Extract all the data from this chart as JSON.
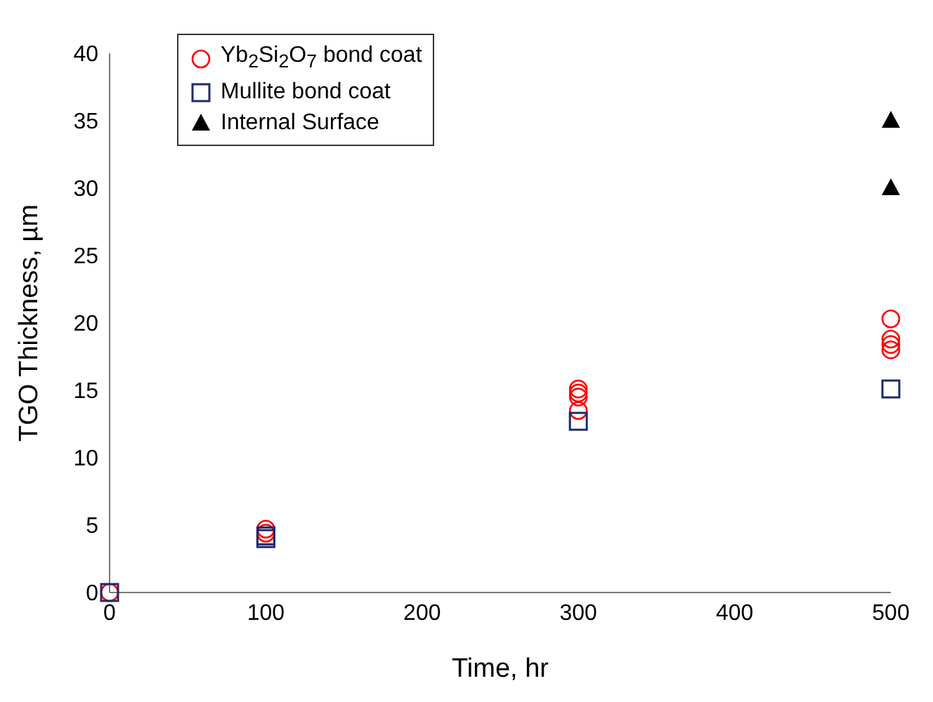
{
  "chart_data": {
    "type": "scatter",
    "xlabel": "Time, hr",
    "ylabel": "TGO Thickness, µm",
    "xlim": [
      0,
      500
    ],
    "xticks": [
      0,
      100,
      200,
      300,
      400,
      500
    ],
    "ylim": [
      0,
      40
    ],
    "yticks": [
      0,
      5,
      10,
      15,
      20,
      25,
      30,
      35,
      40
    ],
    "grid": false,
    "legend": "top left",
    "series": [
      {
        "name": "Yb$_{2}$Si$_{2}$O$_{7}$ bond coat",
        "color": "#ff0000",
        "marker": "circle",
        "x": [
          0,
          100,
          100,
          300,
          300,
          300,
          300,
          500,
          500,
          500,
          500
        ],
        "values": [
          0,
          4.7,
          4.4,
          15.1,
          14.8,
          14.5,
          13.5,
          20.3,
          18.8,
          18.4,
          18.0
        ]
      },
      {
        "name": "Mullite bond coat",
        "color": "#1f2a6b",
        "marker": "square",
        "x": [
          0,
          100,
          100,
          300,
          500
        ],
        "values": [
          0,
          4.2,
          4.0,
          12.7,
          15.1
        ]
      },
      {
        "name": "Internal Surface",
        "color": "#000000",
        "marker": "triangle",
        "x": [
          500,
          500
        ],
        "values": [
          35,
          30
        ]
      }
    ]
  }
}
